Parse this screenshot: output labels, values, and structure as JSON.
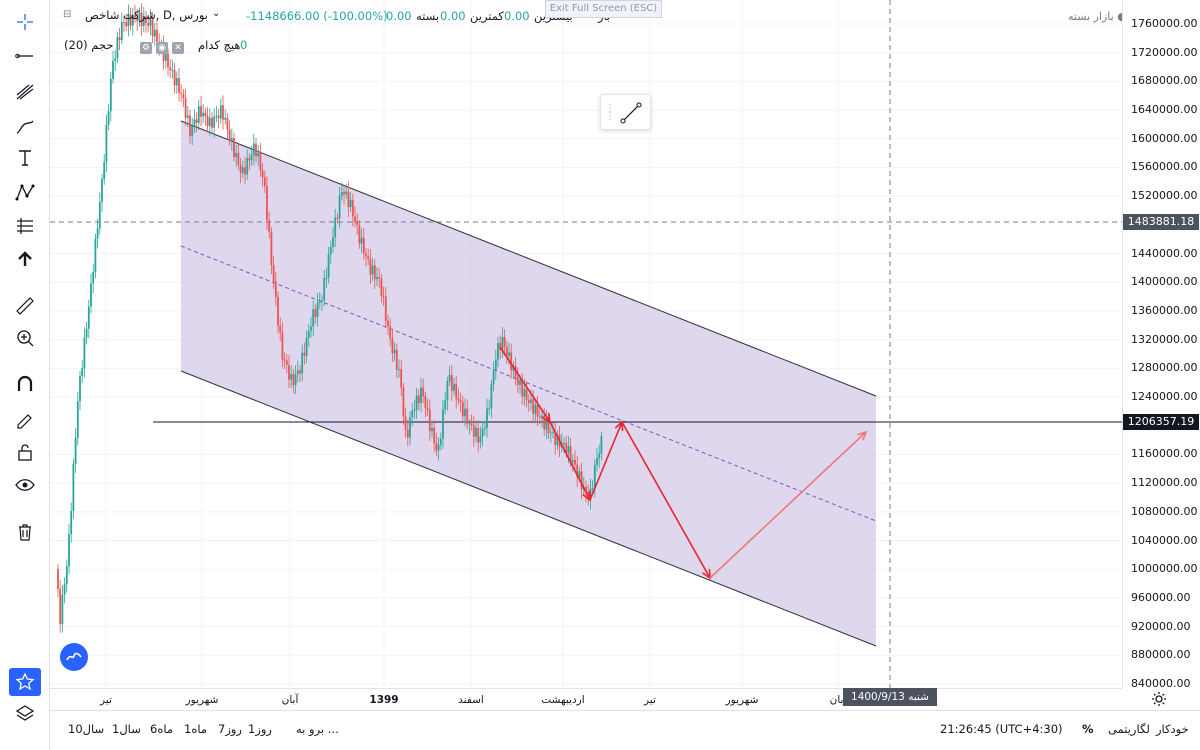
{
  "legend": {
    "symbol": "شرکت شاخص, D, بورس",
    "change": "-1148666.00 (-100.00%)",
    "close_label": "بسته",
    "close_value": "0.00",
    "low_label": "کمترین",
    "low_value": "0.00",
    "high_label": "بیشترین",
    "high_value": "0.00",
    "open_label": "باز",
    "volume_label": "حجم (20)",
    "indicator_text": "هیچ کدام",
    "indicator_value": "0"
  },
  "exit_fullscreen": "Exit Full Screen (ESC)",
  "market_status": "بازار بسته",
  "price_axis": {
    "ticks": [
      "1760000.00",
      "1720000.00",
      "1680000.00",
      "1640000.00",
      "1600000.00",
      "1560000.00",
      "1520000.00",
      "1440000.00",
      "1400000.00",
      "1360000.00",
      "1320000.00",
      "1280000.00",
      "1240000.00",
      "1160000.00",
      "1120000.00",
      "1080000.00",
      "1040000.00",
      "1000000.00",
      "960000.00",
      "920000.00",
      "880000.00",
      "840000.00"
    ],
    "crosshair_price": "1483881.18",
    "line_price": "1206357.19"
  },
  "time_axis": {
    "ticks": [
      "تیر",
      "شهریور",
      "آبان",
      "1399",
      "اسفند",
      "اردیبهشت",
      "تیر",
      "شهریور",
      "آبان"
    ],
    "crosshair_date": "شنبه 1400/9/13"
  },
  "bottom_bar": {
    "ranges": [
      "1روز",
      "7روز",
      "1ماه",
      "6ماه",
      "1سال",
      "10سال"
    ],
    "goto": "برو به ...",
    "clock": "21:26:45 (UTC+4:30)",
    "percent": "%",
    "log": "لگاریتمی",
    "auto": "خودکار"
  },
  "colors": {
    "up": "#26a69a",
    "down": "#ef5350",
    "channel_fill": "#d8d0ea",
    "arrow": "#e8242b",
    "arrow_light": "#f07878"
  },
  "icons": [
    "crosshair-icon",
    "trend-line-icon",
    "fib-icon",
    "brush-icon",
    "text-icon",
    "pattern-icon",
    "prediction-icon",
    "arrow-up-icon",
    "ruler-icon",
    "zoom-in-icon",
    "magnet-icon",
    "lock-drawing-icon",
    "lock-icon",
    "eye-icon",
    "trash-icon",
    "favorite-star-icon",
    "layers-icon",
    "settings-icon"
  ]
}
